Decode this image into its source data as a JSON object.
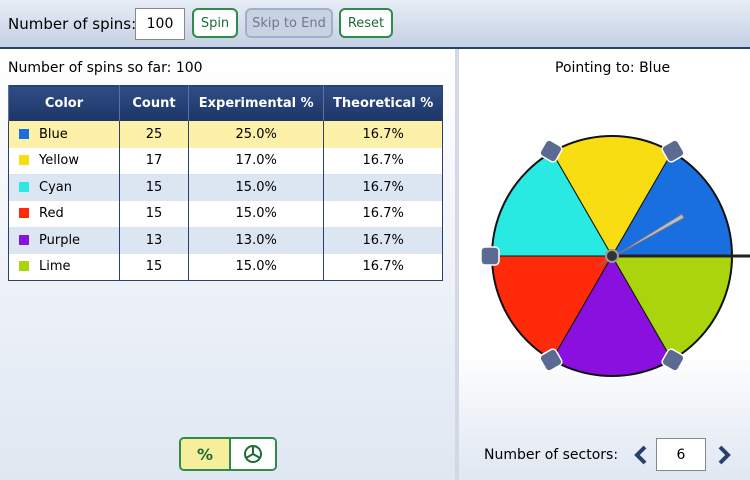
{
  "toolbar": {
    "spins_label": "Number of spins:",
    "spins_input": "100",
    "buttons": [
      "Spin",
      "Skip to End",
      "Reset"
    ]
  },
  "left_panel": {
    "spins_so_far": "Number of spins so far: 100",
    "table": {
      "headers": [
        "Color",
        "Count",
        "Experimental %",
        "Theoretical %"
      ],
      "rows": [
        [
          "Blue",
          "25",
          "25.0%",
          "16.7%"
        ],
        [
          "Yellow",
          "17",
          "17.0%",
          "16.7%"
        ],
        [
          "Cyan",
          "15",
          "15.0%",
          "16.7%"
        ],
        [
          "Red",
          "15",
          "15.0%",
          "16.7%"
        ],
        [
          "Purple",
          "13",
          "13.0%",
          "16.7%"
        ],
        [
          "Lime",
          "15",
          "15.0%",
          "16.7%"
        ]
      ]
    },
    "toggle": {
      "percent": "%"
    }
  },
  "right_panel": {
    "pointing_to": "Pointing to: Blue",
    "sectors_label": "Number of sectors:",
    "sectors_input": "6"
  }
}
